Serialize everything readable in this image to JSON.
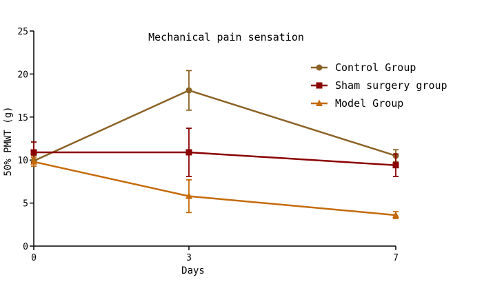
{
  "chart_data": {
    "type": "line",
    "title": "Mechanical pain sensation",
    "xlabel": "Days",
    "ylabel": "50% PMWT (g)",
    "x": [
      0,
      3,
      7
    ],
    "xlim": [
      0,
      7
    ],
    "ylim": [
      0,
      25
    ],
    "yticks": [
      0,
      5,
      10,
      15,
      20,
      25
    ],
    "xticks": [
      0,
      3,
      7
    ],
    "grid": false,
    "legend_position": "top-right",
    "series": [
      {
        "name": "Control Group",
        "color": "#8B6226",
        "marker": "circle",
        "values": [
          9.9,
          18.1,
          10.5
        ],
        "errors": [
          0.6,
          2.3,
          0.7
        ]
      },
      {
        "name": "Sham surgery group",
        "color": "#8B0000",
        "marker": "square",
        "values": [
          10.9,
          10.9,
          9.4
        ],
        "errors": [
          1.2,
          2.8,
          1.3
        ]
      },
      {
        "name": "Model Group",
        "color": "#C46A0A",
        "marker": "triangle",
        "values": [
          9.8,
          5.8,
          3.6
        ],
        "errors": [
          0.5,
          1.9,
          0.4
        ]
      }
    ]
  }
}
